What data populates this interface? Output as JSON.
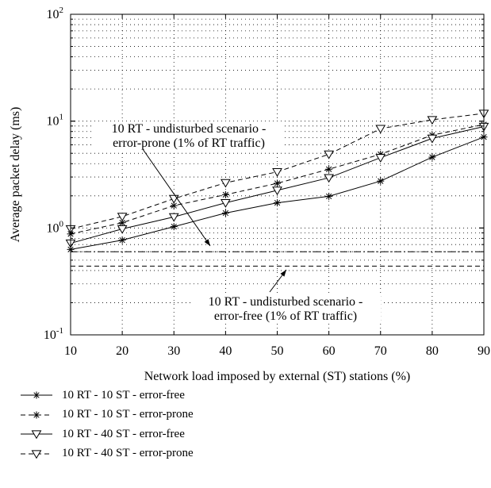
{
  "chart_data": {
    "type": "line",
    "xlabel": "Network load imposed by external (ST) stations (%)",
    "ylabel": "Average packet delay (ms)",
    "x": [
      10,
      20,
      30,
      40,
      50,
      60,
      70,
      80,
      90
    ],
    "xlim": [
      10,
      90
    ],
    "ylim": [
      0.1,
      100
    ],
    "yscale": "log",
    "x_ticks": [
      "10",
      "20",
      "30",
      "40",
      "50",
      "60",
      "70",
      "80",
      "90"
    ],
    "y_ticks": [
      {
        "base": "10",
        "exp": "-1",
        "value": 0.1
      },
      {
        "base": "10",
        "exp": "0",
        "value": 1
      },
      {
        "base": "10",
        "exp": "1",
        "value": 10
      },
      {
        "base": "10",
        "exp": "2",
        "value": 100
      }
    ],
    "grid": true,
    "series": [
      {
        "name": "10 RT - 10 ST - error-free",
        "line": "solid",
        "marker": "star",
        "color": "#000000",
        "values": [
          0.63,
          0.77,
          1.03,
          1.38,
          1.72,
          1.98,
          2.75,
          4.6,
          7.1
        ]
      },
      {
        "name": "10 RT - 10 ST - error-prone",
        "line": "dashed",
        "marker": "star",
        "color": "#000000",
        "values": [
          0.88,
          1.12,
          1.62,
          2.05,
          2.62,
          3.55,
          4.9,
          7.4,
          9.3
        ]
      },
      {
        "name": "10 RT - 40 ST - error-free",
        "line": "solid",
        "marker": "triangle-down",
        "color": "#000000",
        "values": [
          0.72,
          0.98,
          1.27,
          1.72,
          2.25,
          2.95,
          4.55,
          6.9,
          8.9
        ]
      },
      {
        "name": "10 RT - 40 ST - error-prone",
        "line": "dashed",
        "marker": "triangle-down",
        "color": "#000000",
        "values": [
          0.98,
          1.28,
          1.88,
          2.65,
          3.35,
          4.9,
          8.5,
          10.3,
          11.8
        ]
      }
    ],
    "reference_lines": [
      {
        "label": "10 RT - undisturbed scenario - error-prone (1% of RT traffic)",
        "value": 0.6,
        "line": "dashdot"
      },
      {
        "label": "10 RT - undisturbed scenario - error-free (1% of RT traffic)",
        "value": 0.44,
        "line": "dashed"
      }
    ],
    "annotations": [
      {
        "lines": [
          "10 RT - undisturbed scenario -",
          "error-prone (1% of RT traffic)"
        ],
        "points_to": "reference_lines.0"
      },
      {
        "lines": [
          "10 RT - undisturbed scenario -",
          "error-free (1% of RT traffic)"
        ],
        "points_to": "reference_lines.1"
      }
    ],
    "legend_position": "below"
  }
}
